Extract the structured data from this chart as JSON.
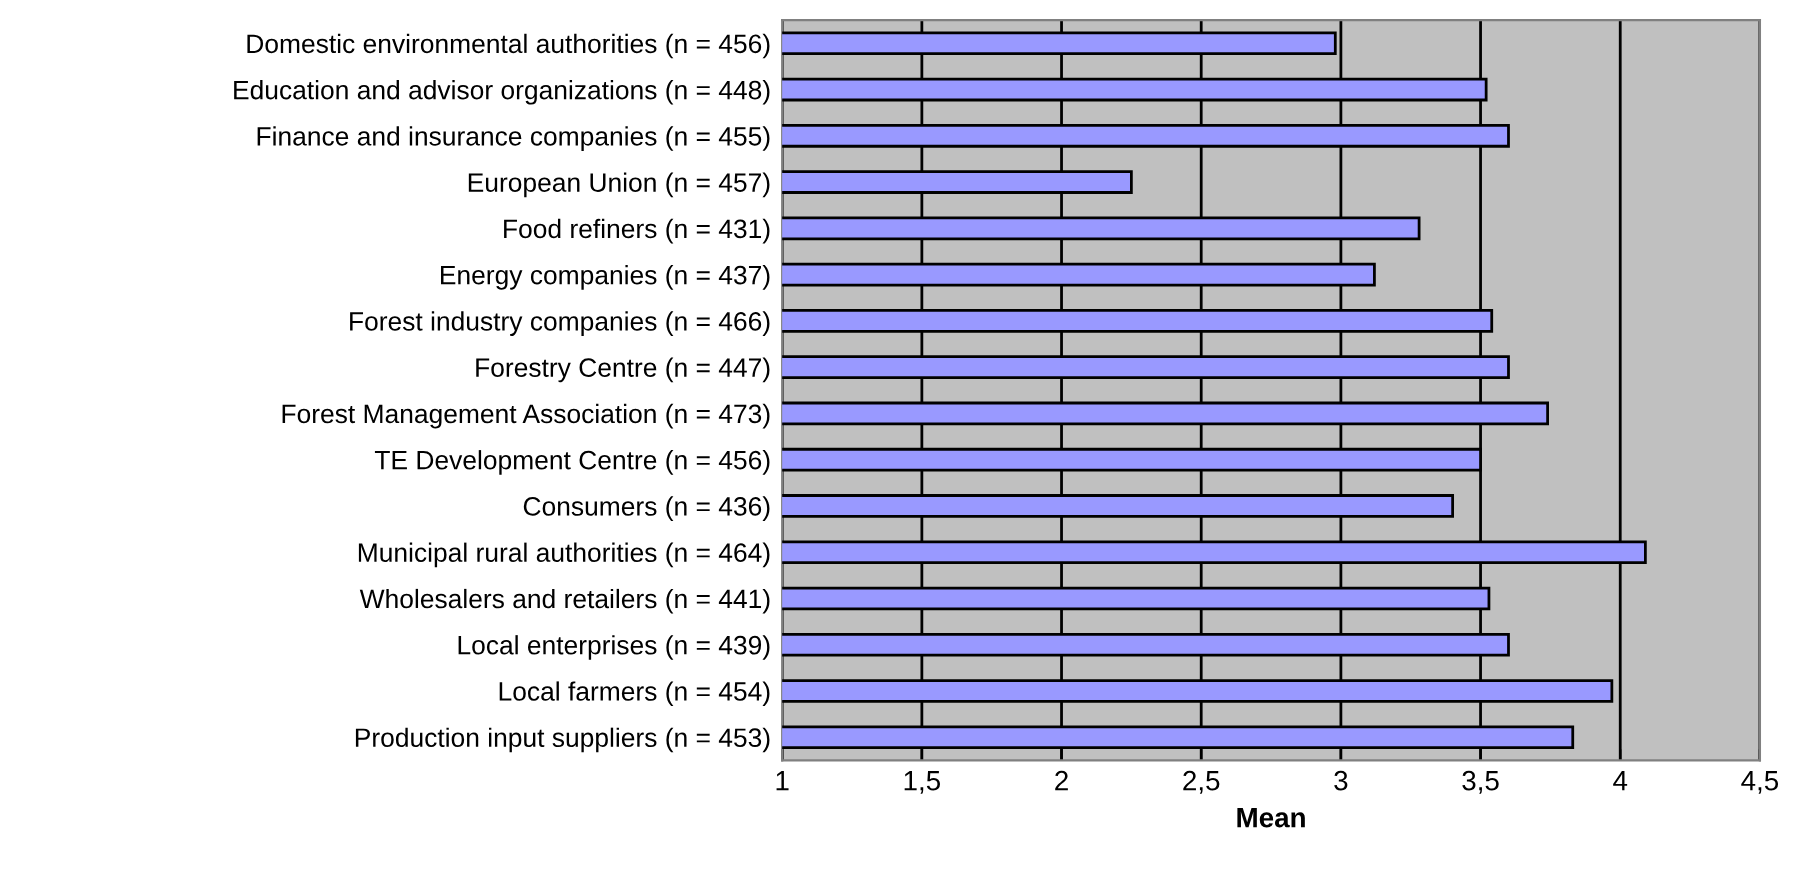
{
  "chart_data": {
    "type": "bar",
    "orientation": "horizontal",
    "xlabel": "Mean",
    "categories": [
      "Domestic environmental authorities (n = 456)",
      "Education and advisor organizations (n = 448)",
      "Finance and insurance companies (n = 455)",
      "European Union (n = 457)",
      "Food refiners (n = 431)",
      "Energy companies (n = 437)",
      "Forest industry companies (n = 466)",
      "Forestry Centre (n = 447)",
      "Forest Management Association (n = 473)",
      "TE Development Centre (n = 456)",
      "Consumers (n = 436)",
      "Municipal rural authorities (n = 464)",
      "Wholesalers and retailers (n = 441)",
      "Local enterprises (n = 439)",
      "Local farmers (n = 454)",
      "Production input suppliers (n = 453)"
    ],
    "values": [
      2.98,
      3.52,
      3.6,
      2.25,
      3.28,
      3.12,
      3.54,
      3.6,
      3.74,
      3.5,
      3.4,
      4.09,
      3.53,
      3.6,
      3.97,
      3.83
    ],
    "color": "#9999ff",
    "xlim": [
      1,
      4.5
    ],
    "xticks": [
      1,
      {
        "value": 1.5,
        "label": "1,5"
      },
      2,
      {
        "value": 2.5,
        "label": "2,5"
      },
      3,
      {
        "value": 3.5,
        "label": "3,5"
      },
      4,
      {
        "value": 4.5,
        "label": "4,5"
      }
    ],
    "grid": "x",
    "legend": false
  }
}
